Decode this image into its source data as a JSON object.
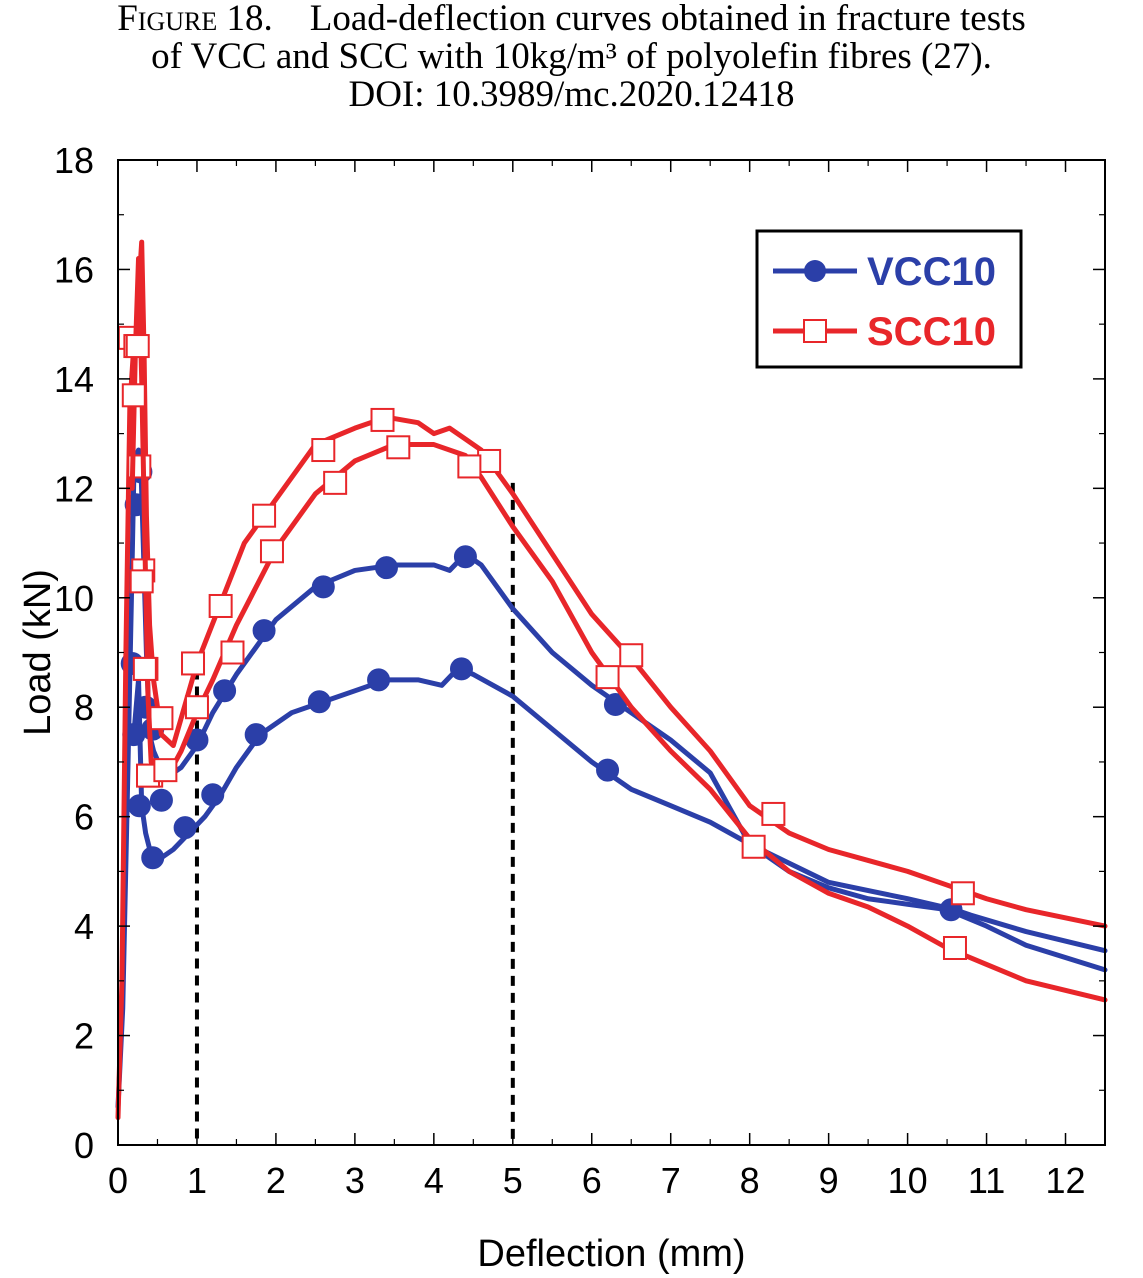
{
  "caption": {
    "figure_label": "Figure 18.",
    "line1_text": "Load-deflection curves obtained in fracture tests",
    "line2": "of VCC and SCC with 10kg/m³ of polyolefin fibres (27).",
    "line3": "DOI: 10.3989/mc.2020.12418"
  },
  "chart_data": {
    "type": "line",
    "xlabel": "Deflection (mm)",
    "ylabel": "Load (kN)",
    "xlim": [
      0,
      12.5
    ],
    "ylim": [
      0,
      18
    ],
    "xticks": [
      "0",
      "1",
      "2",
      "3",
      "4",
      "5",
      "6",
      "7",
      "8",
      "9",
      "10",
      "11",
      "12"
    ],
    "yticks": [
      "0",
      "2",
      "4",
      "6",
      "8",
      "10",
      "12",
      "14",
      "16",
      "18"
    ],
    "grid": false,
    "legend_position": "top-right",
    "reference_lines_x": [
      1,
      5
    ],
    "series": [
      {
        "name": "VCC10",
        "legend": true,
        "color": "#2b3fa8",
        "marker": "filled-circle",
        "x": [
          0,
          0.06,
          0.12,
          0.17,
          0.2,
          0.23,
          0.26,
          0.29,
          0.32,
          0.36,
          0.4,
          0.45,
          0.6,
          0.8,
          1.0,
          1.2,
          1.5,
          2.0,
          2.5,
          3.0,
          3.5,
          4.0,
          4.2,
          4.4,
          4.6,
          5.0,
          5.5,
          6.0,
          6.5,
          7.0,
          7.5,
          8.0,
          9.0,
          10.0,
          10.6,
          10.8,
          11.5,
          12.5
        ],
        "y": [
          0.7,
          2.5,
          6.5,
          10.0,
          12.2,
          12.6,
          12.7,
          12.4,
          11.0,
          9.0,
          7.5,
          7.2,
          6.7,
          6.9,
          7.3,
          7.9,
          8.6,
          9.6,
          10.2,
          10.5,
          10.6,
          10.6,
          10.5,
          10.8,
          10.6,
          9.8,
          9.0,
          8.4,
          7.9,
          7.4,
          6.8,
          5.5,
          4.8,
          4.5,
          4.3,
          4.2,
          3.9,
          3.55
        ],
        "markers_x": [
          0.18,
          0.23,
          0.29,
          0.35,
          0.44,
          0.55,
          1.0,
          1.35,
          1.85,
          2.6,
          3.4,
          4.4,
          6.3
        ],
        "markers_y": [
          8.8,
          11.7,
          12.3,
          8.0,
          7.6,
          6.3,
          7.4,
          8.3,
          9.4,
          10.2,
          10.55,
          10.75,
          8.05
        ]
      },
      {
        "name": "",
        "legend": false,
        "color": "#2b3fa8",
        "marker": "filled-circle",
        "x": [
          0.2,
          0.26,
          0.3,
          0.35,
          0.42,
          0.5,
          0.7,
          0.9,
          1.1,
          1.3,
          1.5,
          1.8,
          2.2,
          2.6,
          3.0,
          3.4,
          3.8,
          4.1,
          4.3,
          4.5,
          5.0,
          5.5,
          6.0,
          6.5,
          7.0,
          7.5,
          8.0,
          8.5,
          9.0,
          9.5,
          10.0,
          10.5,
          11.0,
          11.5,
          12.5
        ],
        "y": [
          7.5,
          8.5,
          6.2,
          5.7,
          5.3,
          5.2,
          5.4,
          5.7,
          6.0,
          6.4,
          6.9,
          7.5,
          7.9,
          8.1,
          8.3,
          8.5,
          8.5,
          8.4,
          8.7,
          8.6,
          8.2,
          7.6,
          7.0,
          6.5,
          6.2,
          5.9,
          5.5,
          5.0,
          4.7,
          4.5,
          4.4,
          4.3,
          4.0,
          3.65,
          3.2
        ],
        "markers_x": [
          0.2,
          0.27,
          0.44,
          0.85,
          1.2,
          1.75,
          2.55,
          3.3,
          4.35,
          6.2,
          10.55
        ],
        "markers_y": [
          7.5,
          6.2,
          5.25,
          5.8,
          6.4,
          7.5,
          8.1,
          8.5,
          8.7,
          6.85,
          4.3
        ]
      },
      {
        "name": "SCC10",
        "legend": true,
        "color": "#e8262a",
        "marker": "open-square",
        "x": [
          0,
          0.05,
          0.1,
          0.15,
          0.2,
          0.24,
          0.27,
          0.3,
          0.33,
          0.36,
          0.4,
          0.45,
          0.55,
          0.7,
          1.0,
          1.3,
          1.6,
          2.0,
          2.5,
          3.0,
          3.4,
          3.8,
          4.0,
          4.2,
          4.4,
          4.6,
          5.0,
          5.5,
          6.0,
          6.5,
          7.0,
          7.5,
          8.0,
          8.5,
          9.0,
          9.5,
          10.0,
          10.5,
          11.0,
          11.5,
          12.5
        ],
        "y": [
          0.5,
          3.0,
          9.0,
          13.5,
          14.6,
          15.0,
          15.8,
          16.5,
          14.5,
          11.5,
          9.5,
          8.5,
          7.5,
          7.3,
          8.8,
          9.9,
          11.0,
          11.8,
          12.8,
          13.1,
          13.3,
          13.2,
          13.0,
          13.1,
          12.9,
          12.7,
          11.9,
          10.8,
          9.7,
          8.9,
          8.0,
          7.2,
          6.2,
          5.7,
          5.4,
          5.2,
          5.0,
          4.75,
          4.5,
          4.3,
          4.0
        ],
        "markers_x": [
          0.15,
          0.22,
          0.27,
          0.32,
          0.36,
          0.42,
          0.55,
          0.95,
          1.3,
          1.85,
          2.6,
          3.35,
          4.7,
          6.5,
          8.3,
          10.7
        ],
        "markers_y": [
          14.75,
          14.6,
          12.4,
          10.5,
          8.7,
          6.75,
          7.8,
          8.8,
          9.85,
          11.5,
          12.7,
          13.25,
          12.5,
          8.95,
          6.05,
          4.6
        ]
      },
      {
        "name": "",
        "legend": false,
        "color": "#e8262a",
        "marker": "open-square",
        "x": [
          0.18,
          0.22,
          0.26,
          0.3,
          0.34,
          0.38,
          0.42,
          0.5,
          0.65,
          0.8,
          1.0,
          1.2,
          1.5,
          2.0,
          2.5,
          3.0,
          3.5,
          4.0,
          4.4,
          4.6,
          5.0,
          5.5,
          6.0,
          6.5,
          7.0,
          7.5,
          8.0,
          8.5,
          9.0,
          9.5,
          10.0,
          10.5,
          11.0,
          11.5,
          12.5
        ],
        "y": [
          12.0,
          14.5,
          16.2,
          14.0,
          11.0,
          8.2,
          7.0,
          6.7,
          6.8,
          7.2,
          7.9,
          8.5,
          9.5,
          10.9,
          11.9,
          12.5,
          12.8,
          12.8,
          12.6,
          12.2,
          11.3,
          10.3,
          9.0,
          8.0,
          7.2,
          6.5,
          5.6,
          5.0,
          4.6,
          4.35,
          4.0,
          3.6,
          3.3,
          3.0,
          2.65
        ],
        "markers_x": [
          0.2,
          0.25,
          0.3,
          0.34,
          0.38,
          0.6,
          1.0,
          1.45,
          1.95,
          2.75,
          3.55,
          4.45,
          6.2,
          8.05,
          10.6
        ],
        "markers_y": [
          13.7,
          14.6,
          10.3,
          8.7,
          6.75,
          6.85,
          8.0,
          9.0,
          10.85,
          12.1,
          12.75,
          12.4,
          8.55,
          5.45,
          3.6
        ]
      }
    ]
  }
}
